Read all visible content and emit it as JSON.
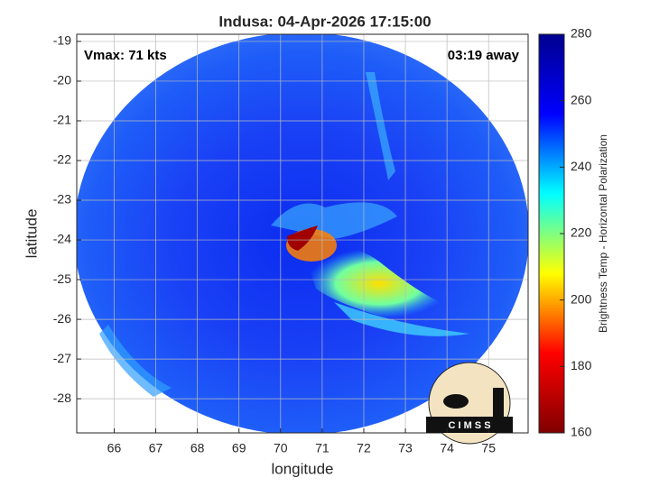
{
  "chart_data": {
    "type": "heatmap",
    "title": "Indusa: 04-Apr-2026 17:15:00",
    "xlabel": "longitude",
    "ylabel": "latitude",
    "annotations": [
      "Vmax: 71 kts",
      "03:19 away"
    ],
    "xlim": [
      65.1,
      75.95
    ],
    "xticks": [
      66,
      67,
      68,
      69,
      70,
      71,
      72,
      73,
      74,
      75
    ],
    "ylim": [
      -28.86,
      -18.82
    ],
    "yticks": [
      -28,
      -27,
      -26,
      -25,
      -24,
      -23,
      -22,
      -21,
      -20,
      -19
    ],
    "grid": true,
    "colorbar": {
      "label": "Brightness Temp - Horizontal Polarization",
      "lim": [
        160,
        280
      ],
      "ticks": [
        160,
        180,
        200,
        220,
        240,
        260,
        280
      ],
      "colors": [
        "#800000",
        "#ff0000",
        "#ffff00",
        "#00ffff",
        "#0000ff",
        "#00008f"
      ]
    },
    "logo_text": "C I M S S"
  }
}
